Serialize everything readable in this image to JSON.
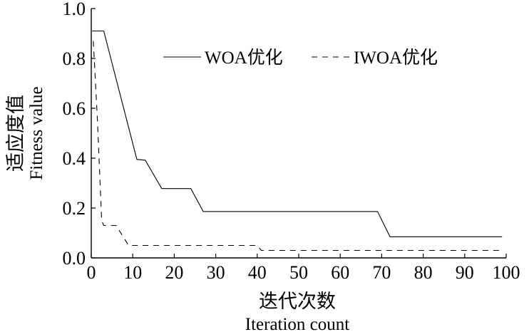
{
  "chart_data": {
    "type": "line",
    "title": "",
    "xlabel_cn": "迭代次数",
    "xlabel_en": "Iteration count",
    "ylabel_cn": "适应度值",
    "ylabel_en": "Fitness value",
    "xlim": [
      0,
      100
    ],
    "ylim": [
      0.0,
      1.0
    ],
    "xticks": [
      0,
      10,
      20,
      30,
      40,
      50,
      60,
      70,
      80,
      90,
      100
    ],
    "xtick_labels": [
      "0",
      "10",
      "20",
      "30",
      "40",
      "50",
      "60",
      "70",
      "80",
      "90",
      "100"
    ],
    "yticks": [
      0.0,
      0.2,
      0.4,
      0.6,
      0.8,
      1.0
    ],
    "ytick_labels": [
      "0.0",
      "0.2",
      "0.4",
      "0.6",
      "0.8",
      "1.0"
    ],
    "grid": false,
    "legend_position": "top-right",
    "series": [
      {
        "name": "WOA优化",
        "style": "solid",
        "color": "#000000",
        "points": [
          [
            0,
            0.91
          ],
          [
            3,
            0.91
          ],
          [
            11,
            0.395
          ],
          [
            13,
            0.392
          ],
          [
            17,
            0.278
          ],
          [
            24,
            0.278
          ],
          [
            27,
            0.186
          ],
          [
            69,
            0.186
          ],
          [
            72,
            0.085
          ],
          [
            99,
            0.085
          ]
        ]
      },
      {
        "name": "IWOA优化",
        "style": "dashed",
        "color": "#000000",
        "points": [
          [
            0.5,
            0.87
          ],
          [
            1.5,
            0.55
          ],
          [
            2.5,
            0.15
          ],
          [
            3,
            0.13
          ],
          [
            6,
            0.13
          ],
          [
            9,
            0.05
          ],
          [
            40,
            0.05
          ],
          [
            41,
            0.03
          ],
          [
            99,
            0.03
          ]
        ]
      }
    ]
  }
}
